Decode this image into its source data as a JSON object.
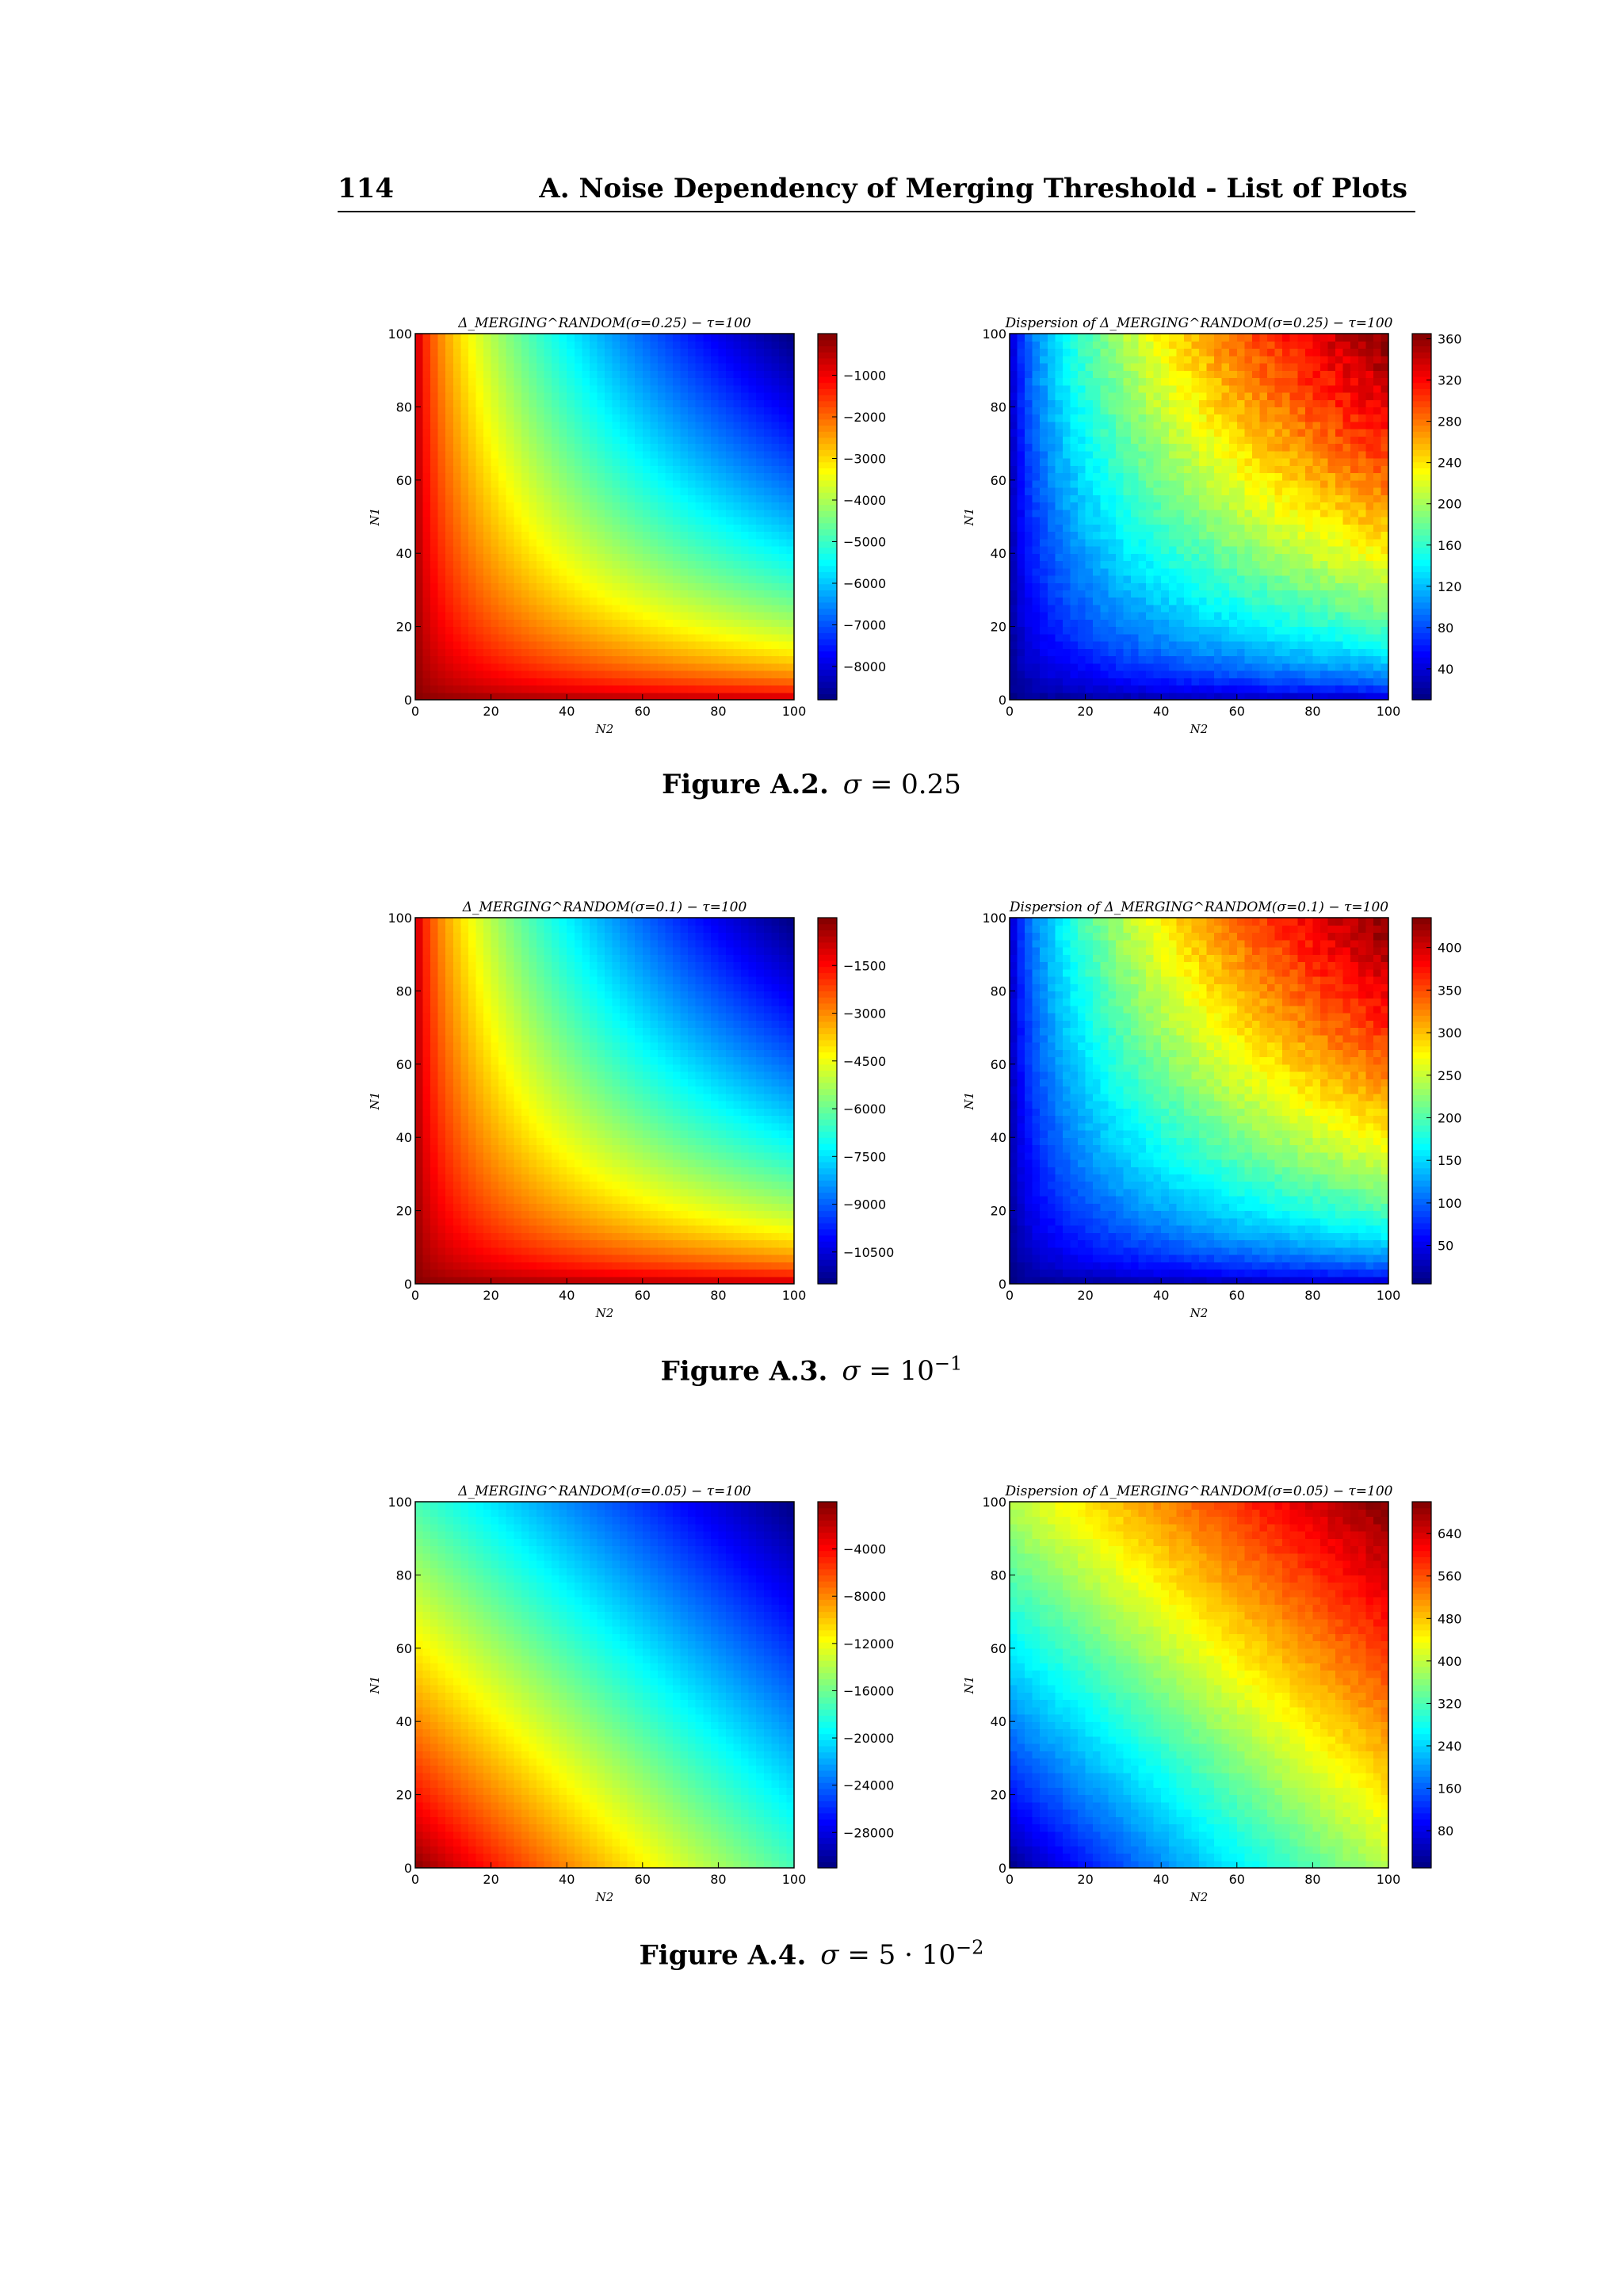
{
  "header": {
    "page_number": "114",
    "running_title": "A. Noise Dependency of Merging Threshold - List of Plots"
  },
  "colormap": "jet",
  "figures": [
    {
      "caption_label": "Figure A.2.",
      "caption_sigma": "0.25",
      "caption_exponent": "",
      "caption_prefix": "",
      "plots": [
        {
          "title": "Δ_MERGING^RANDOM(σ=0.25) − τ=100"
        },
        {
          "title": "Dispersion of Δ_MERGING^RANDOM(σ=0.25) − τ=100"
        }
      ]
    },
    {
      "caption_label": "Figure A.3.",
      "caption_sigma": "10",
      "caption_exponent": "−1",
      "caption_prefix": "",
      "plots": [
        {
          "title": "Δ_MERGING^RANDOM(σ=0.1) − τ=100"
        },
        {
          "title": "Dispersion of Δ_MERGING^RANDOM(σ=0.1) − τ=100"
        }
      ]
    },
    {
      "caption_label": "Figure A.4.",
      "caption_sigma": "10",
      "caption_exponent": "−2",
      "caption_prefix": "5 · ",
      "plots": [
        {
          "title": "Δ_MERGING^RANDOM(σ=0.05) − τ=100"
        },
        {
          "title": "Dispersion of Δ_MERGING^RANDOM(σ=0.05) − τ=100"
        }
      ]
    }
  ],
  "chart_data": [
    {
      "type": "heatmap",
      "title": "Δ_MERGING^RANDOM(σ=0.25) − τ=100",
      "xlabel": "N2",
      "ylabel": "N1",
      "xlim": [
        0,
        100
      ],
      "ylim": [
        0,
        100
      ],
      "xticks": [
        "0",
        "20",
        "40",
        "60",
        "80",
        "100"
      ],
      "yticks": [
        "0",
        "20",
        "40",
        "60",
        "80",
        "100"
      ],
      "colorbar": {
        "min": -8800,
        "max": 0,
        "ticks": [
          -1000,
          -2000,
          -3000,
          -4000,
          -5000,
          -6000,
          -7000,
          -8000
        ],
        "tick_labels": [
          "−1000",
          "−2000",
          "−3000",
          "−4000",
          "−5000",
          "−6000",
          "−7000",
          "−8000"
        ]
      },
      "field": "product",
      "invert": true,
      "noise": 0
    },
    {
      "type": "heatmap",
      "title": "Dispersion of Δ_MERGING^RANDOM(σ=0.25) − τ=100",
      "xlabel": "N2",
      "ylabel": "N1",
      "xlim": [
        0,
        100
      ],
      "ylim": [
        0,
        100
      ],
      "xticks": [
        "0",
        "20",
        "40",
        "60",
        "80",
        "100"
      ],
      "yticks": [
        "0",
        "20",
        "40",
        "60",
        "80",
        "100"
      ],
      "colorbar": {
        "min": 10,
        "max": 365,
        "ticks": [
          40,
          80,
          120,
          160,
          200,
          240,
          280,
          320,
          360
        ],
        "tick_labels": [
          "40",
          "80",
          "120",
          "160",
          "200",
          "240",
          "280",
          "320",
          "360"
        ]
      },
      "field": "product",
      "invert": false,
      "noise": 0.06
    },
    {
      "type": "heatmap",
      "title": "Δ_MERGING^RANDOM(σ=0.1) − τ=100",
      "xlabel": "N2",
      "ylabel": "N1",
      "xlim": [
        0,
        100
      ],
      "ylim": [
        0,
        100
      ],
      "xticks": [
        "0",
        "20",
        "40",
        "60",
        "80",
        "100"
      ],
      "yticks": [
        "0",
        "20",
        "40",
        "60",
        "80",
        "100"
      ],
      "colorbar": {
        "min": -11500,
        "max": 0,
        "ticks": [
          -1500,
          -3000,
          -4500,
          -6000,
          -7500,
          -9000,
          -10500
        ],
        "tick_labels": [
          "−1500",
          "−3000",
          "−4500",
          "−6000",
          "−7500",
          "−9000",
          "−10500"
        ]
      },
      "field": "product",
      "invert": true,
      "noise": 0
    },
    {
      "type": "heatmap",
      "title": "Dispersion of Δ_MERGING^RANDOM(σ=0.1) − τ=100",
      "xlabel": "N2",
      "ylabel": "N1",
      "xlim": [
        0,
        100
      ],
      "ylim": [
        0,
        100
      ],
      "xticks": [
        "0",
        "20",
        "40",
        "60",
        "80",
        "100"
      ],
      "yticks": [
        "0",
        "20",
        "40",
        "60",
        "80",
        "100"
      ],
      "colorbar": {
        "min": 5,
        "max": 435,
        "ticks": [
          50,
          100,
          150,
          200,
          250,
          300,
          350,
          400
        ],
        "tick_labels": [
          "50",
          "100",
          "150",
          "200",
          "250",
          "300",
          "350",
          "400"
        ]
      },
      "field": "product",
      "invert": false,
      "noise": 0.05
    },
    {
      "type": "heatmap",
      "title": "Δ_MERGING^RANDOM(σ=0.05) − τ=100",
      "xlabel": "N2",
      "ylabel": "N1",
      "xlim": [
        0,
        100
      ],
      "ylim": [
        0,
        100
      ],
      "xticks": [
        "0",
        "20",
        "40",
        "60",
        "80",
        "100"
      ],
      "yticks": [
        "0",
        "20",
        "40",
        "60",
        "80",
        "100"
      ],
      "colorbar": {
        "min": -31000,
        "max": 0,
        "ticks": [
          -4000,
          -8000,
          -12000,
          -16000,
          -20000,
          -24000,
          -28000
        ],
        "tick_labels": [
          "−4000",
          "−8000",
          "−12000",
          "−16000",
          "−20000",
          "−24000",
          "−28000"
        ]
      },
      "field": "sum",
      "invert": true,
      "noise": 0
    },
    {
      "type": "heatmap",
      "title": "Dispersion of Δ_MERGING^RANDOM(σ=0.05) − τ=100",
      "xlabel": "N2",
      "ylabel": "N1",
      "xlim": [
        0,
        100
      ],
      "ylim": [
        0,
        100
      ],
      "xticks": [
        "0",
        "20",
        "40",
        "60",
        "80",
        "100"
      ],
      "yticks": [
        "0",
        "20",
        "40",
        "60",
        "80",
        "100"
      ],
      "colorbar": {
        "min": 10,
        "max": 700,
        "ticks": [
          80,
          160,
          240,
          320,
          400,
          480,
          560,
          640
        ],
        "tick_labels": [
          "80",
          "160",
          "240",
          "320",
          "400",
          "480",
          "560",
          "640"
        ]
      },
      "field": "sum",
      "invert": false,
      "noise": 0.03
    }
  ]
}
